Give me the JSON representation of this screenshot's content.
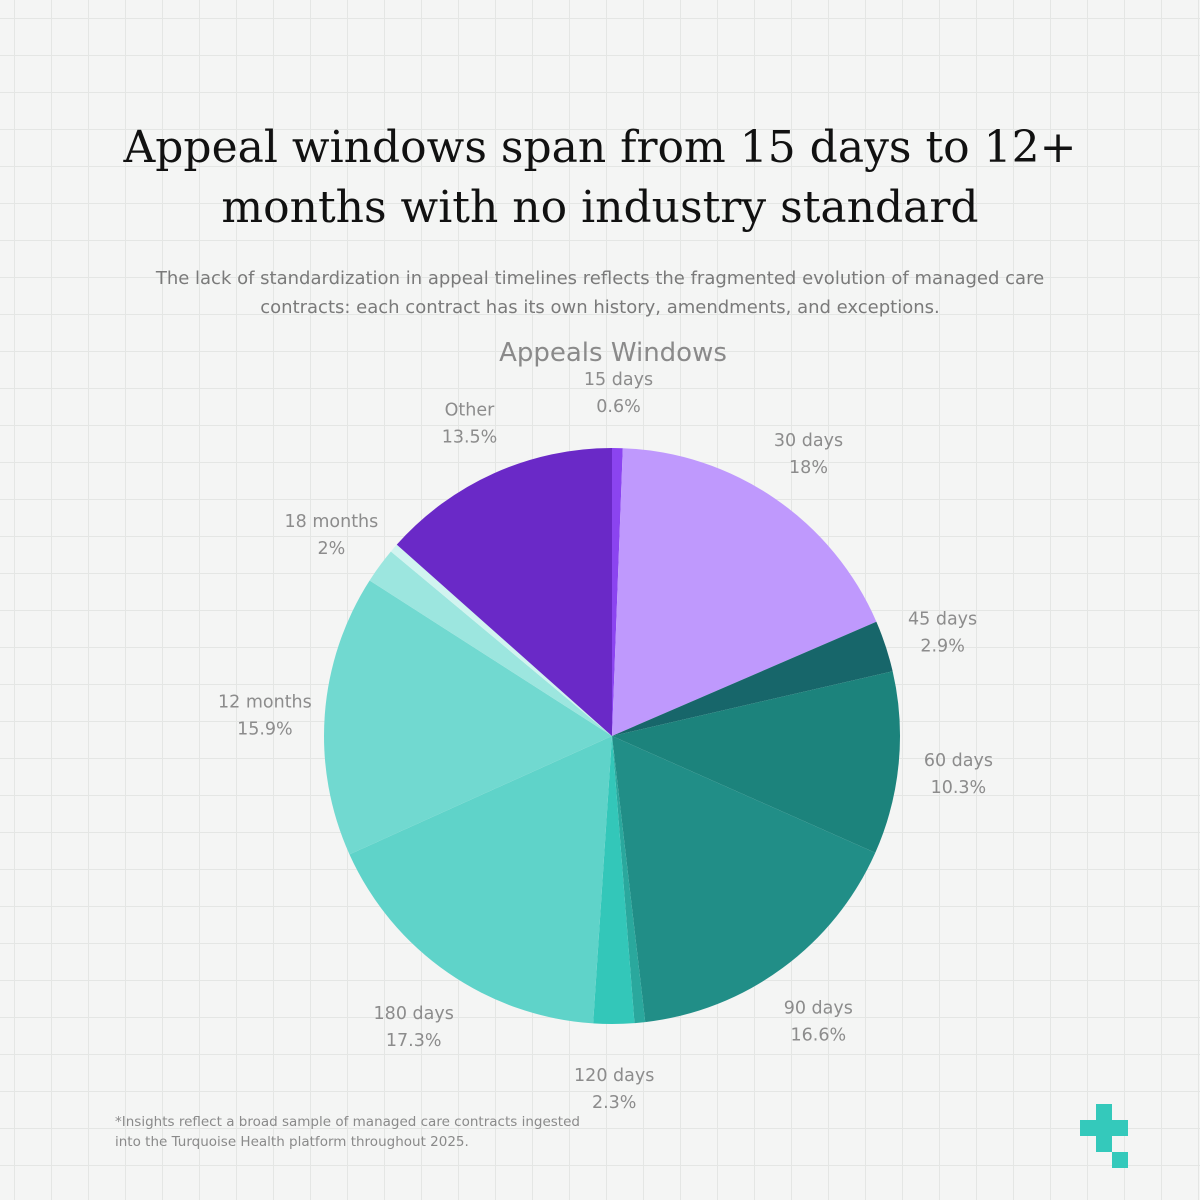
{
  "header": {
    "title_lines": [
      "Appeal windows span from 15 days to 12+",
      "months with no industry standard"
    ],
    "subtitle_lines": [
      "The lack of standardization in appeal timelines reflects the fragmented evolution of managed care",
      "contracts: each contract has its own history, amendments, and exceptions."
    ]
  },
  "chart_data": {
    "type": "pie",
    "title": "Appeals Windows",
    "slices": [
      {
        "label": "15 days",
        "value": 0.6,
        "value_label": "0.6%",
        "color": "#8b44f0"
      },
      {
        "label": "30 days",
        "value": 18,
        "value_label": "18%",
        "color": "#bf99fd"
      },
      {
        "label": "45 days",
        "value": 2.9,
        "value_label": "2.9%",
        "color": "#17666a"
      },
      {
        "label": "60 days",
        "value": 10.3,
        "value_label": "10.3%",
        "color": "#1c837c"
      },
      {
        "label": "90 days",
        "value": 16.6,
        "value_label": "16.6%",
        "color": "#218e87"
      },
      {
        "label": "",
        "value": 0.6,
        "value_label": "",
        "color": "#2aa89d"
      },
      {
        "label": "120 days",
        "value": 2.3,
        "value_label": "2.3%",
        "color": "#33c7b9"
      },
      {
        "label": "180 days",
        "value": 17.3,
        "value_label": "17.3%",
        "color": "#5fd3c9"
      },
      {
        "label": "12 months",
        "value": 15.9,
        "value_label": "15.9%",
        "color": "#71d9d0"
      },
      {
        "label": "18 months",
        "value": 2,
        "value_label": "2%",
        "color": "#9ce6df"
      },
      {
        "label": "",
        "value": 0.5,
        "value_label": "",
        "color": "#d1f4f0"
      },
      {
        "label": "Other",
        "value": 13.5,
        "value_label": "13.5%",
        "color": "#6a29c7"
      }
    ]
  },
  "footnote_lines": [
    "*Insights reflect a broad sample of managed care contracts ingested",
    "into the Turquoise Health platform throughout 2025."
  ],
  "logo": {
    "icon": "plus-icon",
    "color": "#34c9bb"
  }
}
